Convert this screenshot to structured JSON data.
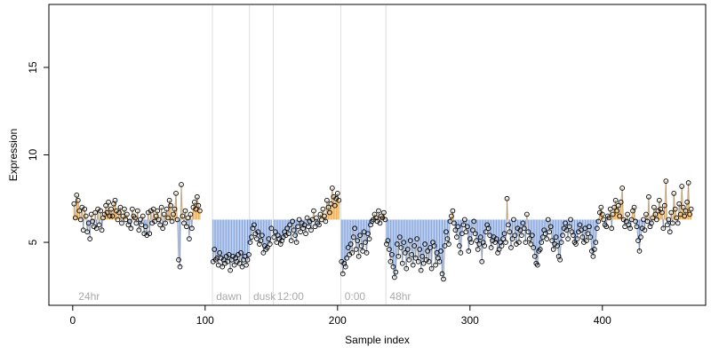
{
  "chart_data": {
    "type": "scatter",
    "xlabel": "Sample index",
    "ylabel": "Expression",
    "xlim": [
      -18,
      478
    ],
    "ylim": [
      1.4,
      18.6
    ],
    "x_ticks": [
      0,
      100,
      200,
      300,
      400
    ],
    "y_ticks": [
      5,
      10,
      15
    ],
    "grid": false,
    "baseline": 6.3,
    "colors": {
      "above": "#f2a22f",
      "below": "#7ea0dc",
      "point_edge": "#000000",
      "divider": "#dddddd",
      "phase_text": "#aaaaaa"
    },
    "phase_boundaries": [
      105,
      133,
      151,
      202,
      236
    ],
    "phase_labels": [
      {
        "text": "24hr",
        "x": 3
      },
      {
        "text": "dawn",
        "x": 107
      },
      {
        "text": "dusk",
        "x": 135
      },
      {
        "text": "12:00",
        "x": 153
      },
      {
        "text": "0:00",
        "x": 204
      },
      {
        "text": "48hr",
        "x": 238
      }
    ],
    "segments": [
      {
        "start": 1,
        "values": [
          7.2,
          6.4,
          7.7,
          7.4,
          6.8,
          6.3,
          7.0,
          5.7,
          6.9,
          6.5,
          5.6,
          6.1,
          5.2,
          6.6,
          6.2,
          5.9,
          6.7,
          5.8,
          6.9,
          6.0,
          6.8,
          5.7,
          6.4,
          6.6,
          7.1,
          6.7,
          7.3,
          6.5,
          6.9,
          6.5,
          7.2,
          7.4,
          6.8,
          6.3,
          6.7,
          7.0,
          6.1,
          6.5,
          6.9,
          6.3,
          6.6,
          6.0,
          6.2,
          5.8,
          6.9,
          6.5,
          6.4,
          6.1,
          6.8,
          5.7,
          6.3,
          6.0,
          6.5,
          5.5,
          5.9,
          5.4,
          6.7,
          5.5,
          6.8,
          6.1,
          6.9,
          6.2,
          6.5,
          6.8,
          6.3,
          6.0,
          7.0,
          5.8,
          6.6,
          6.1,
          6.9,
          6.4,
          7.4,
          7.1,
          6.2,
          6.6,
          6.9,
          7.8,
          6.3,
          4.0,
          3.6,
          8.3,
          6.5,
          6.1,
          6.8,
          5.9,
          6.4,
          5.2,
          6.6,
          5.8,
          7.0,
          7.3,
          6.9,
          7.6,
          7.1,
          6.8
        ]
      },
      {
        "start": 106,
        "values": [
          3.9,
          4.6,
          4.0,
          4.1,
          3.7,
          4.4,
          4.1,
          3.6,
          4.0,
          3.8,
          4.2,
          3.9,
          4.3,
          3.4,
          4.0,
          4.2,
          3.7,
          4.1,
          3.9,
          4.3,
          3.8,
          4.4,
          3.6,
          4.0,
          4.2,
          3.7,
          4.0,
          4.3
        ]
      },
      {
        "start": 134,
        "values": [
          5.0,
          5.3,
          5.8,
          6.0,
          5.5,
          5.2,
          5.6,
          4.9,
          5.1,
          5.4,
          4.4,
          4.8,
          4.6,
          4.7,
          5.2,
          4.9,
          5.8
        ]
      },
      {
        "start": 152,
        "values": [
          5.3,
          5.6,
          5.0,
          5.4,
          5.2,
          4.9,
          5.1,
          5.3,
          5.6,
          5.4,
          5.8,
          5.5,
          6.0,
          5.1,
          6.2,
          5.7,
          5.4,
          5.0,
          5.9,
          6.3,
          5.6,
          6.1,
          5.8,
          6.0,
          5.5,
          6.4,
          5.9,
          6.2,
          5.7,
          6.3,
          6.8,
          5.9,
          6.4,
          6.1,
          6.0,
          6.6,
          6.3,
          6.9,
          6.5,
          6.2,
          7.4,
          7.0,
          6.7,
          7.2,
          8.1,
          7.6,
          7.1,
          7.5,
          7.8,
          7.4
        ]
      },
      {
        "start": 203,
        "values": [
          3.9,
          3.2,
          3.8,
          3.6,
          4.1,
          4.7,
          4.3,
          4.9,
          4.4,
          5.3,
          5.8,
          4.6,
          5.1,
          4.2,
          5.4,
          4.8,
          4.5,
          5.6,
          5.0,
          4.4,
          5.5,
          5.2,
          6.0,
          6.2,
          6.3,
          6.6,
          6.4,
          6.2,
          6.8,
          6.1,
          6.5,
          6.4,
          6.7,
          6.3
        ]
      },
      {
        "start": 237,
        "values": [
          4.9,
          5.1,
          4.6,
          3.9,
          4.3,
          3.6,
          3.0,
          3.3,
          4.9,
          4.2,
          5.3,
          4.7,
          3.8,
          5.0,
          4.4,
          3.5,
          4.6,
          4.0,
          5.1,
          4.3,
          3.7,
          4.8,
          4.1,
          5.2,
          3.9,
          4.6,
          3.4,
          4.2,
          3.8,
          4.9,
          4.0,
          4.5,
          3.9,
          4.7,
          3.5,
          5.0,
          4.8,
          3.7,
          4.4,
          4.1,
          3.9,
          4.5,
          3.2,
          2.9,
          4.8,
          5.6,
          5.2,
          4.9,
          6.2,
          6.5,
          6.8,
          6.1,
          5.7,
          5.3,
          5.9,
          4.8,
          4.4,
          5.5,
          6.0,
          6.3,
          5.6,
          5.9,
          4.5,
          5.2,
          5.0,
          5.7,
          6.2,
          5.5,
          5.1,
          4.6,
          4.9,
          5.3,
          3.9,
          5.0,
          4.8,
          5.6,
          6.0,
          5.8,
          5.4,
          4.7,
          5.1,
          5.3,
          5.0,
          5.2,
          4.4,
          4.6,
          5.0,
          4.8,
          5.2,
          5.5,
          5.0,
          7.5,
          6.0,
          5.6,
          4.7,
          5.2,
          6.3,
          5.4,
          4.9,
          5.8,
          5.0,
          5.7,
          5.4,
          6.1,
          5.8,
          5.0,
          6.6,
          5.6,
          5.2,
          4.9,
          5.4,
          4.7,
          4.2,
          3.8,
          3.7,
          4.5,
          4.6,
          5.0,
          5.3,
          5.7,
          5.5,
          5.2,
          6.3,
          5.6,
          5.9,
          5.1,
          4.6,
          4.9,
          5.3,
          4.8,
          4.2,
          4.0,
          5.0,
          5.4,
          5.8,
          6.1,
          5.7,
          5.2,
          5.9,
          6.3,
          5.6,
          5.4,
          5.0,
          4.9,
          5.2,
          5.6,
          6.0,
          5.7,
          5.3,
          5.0,
          5.8,
          5.1,
          5.5,
          5.9,
          5.3,
          4.5,
          4.2,
          4.6,
          5.0,
          5.8,
          6.2,
          6.7,
          7.0,
          6.6,
          6.3,
          6.0,
          5.9,
          6.5,
          6.4,
          6.9,
          5.8,
          6.6,
          7.0,
          7.4,
          6.8,
          7.1,
          6.5,
          7.3,
          8.1,
          6.3,
          5.9,
          6.2,
          6.6,
          6.0,
          5.8,
          6.3,
          6.8,
          7.0,
          6.2,
          5.9,
          5.1,
          4.5,
          5.3,
          5.8,
          6.3,
          5.7,
          6.6,
          6.2,
          7.6,
          5.9,
          6.1,
          6.4,
          7.0,
          6.6,
          6.3,
          6.8,
          7.4,
          6.9,
          6.7,
          5.8,
          7.1,
          8.5,
          6.0,
          6.3,
          5.6,
          6.7,
          6.1,
          7.8,
          6.9,
          6.4,
          6.1,
          7.2,
          6.6,
          8.2,
          7.0,
          6.5,
          6.8,
          7.3,
          8.4,
          6.6,
          6.9
        ]
      }
    ]
  }
}
